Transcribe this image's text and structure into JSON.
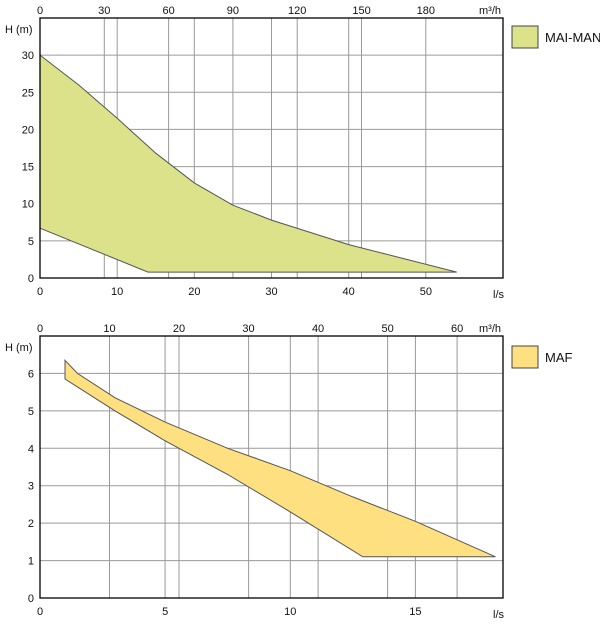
{
  "chart_data": [
    {
      "id": "mai-man",
      "type": "area",
      "ylabel": "H (m)",
      "xlabel_bottom": "l/s",
      "xlabel_top": "m³/h",
      "xlim": [
        0,
        60
      ],
      "ylim": [
        0,
        35
      ],
      "x_ticks": [
        0,
        10,
        20,
        30,
        40,
        50
      ],
      "y_ticks": [
        0,
        5,
        10,
        15,
        20,
        25,
        30
      ],
      "x_top_ticks": [
        0,
        30,
        60,
        90,
        120,
        150,
        180
      ],
      "x_top_factor": 3.6,
      "series": [
        {
          "name": "MAI-MAN",
          "color": "#dbe28a",
          "upper": [
            [
              0,
              30
            ],
            [
              5,
              26
            ],
            [
              10,
              21.5
            ],
            [
              15,
              16.8
            ],
            [
              20,
              12.8
            ],
            [
              25,
              9.8
            ],
            [
              30,
              7.8
            ],
            [
              40,
              4.5
            ],
            [
              54,
              0.8
            ]
          ],
          "lower": [
            [
              0,
              6.7
            ],
            [
              14,
              0.8
            ],
            [
              54,
              0.8
            ]
          ]
        }
      ]
    },
    {
      "id": "maf",
      "type": "area",
      "ylabel": "H (m)",
      "xlabel_bottom": "l/s",
      "xlabel_top": "m³/h",
      "xlim": [
        0,
        18.5
      ],
      "ylim": [
        0,
        7
      ],
      "x_ticks": [
        0,
        5,
        10,
        15
      ],
      "y_ticks": [
        0,
        1,
        2,
        3,
        4,
        5,
        6
      ],
      "x_top_ticks": [
        0,
        10,
        20,
        30,
        40,
        50,
        60
      ],
      "x_top_factor": 3.6,
      "series": [
        {
          "name": "MAF",
          "color": "#ffe080",
          "upper": [
            [
              1,
              6.35
            ],
            [
              1.5,
              6.0
            ],
            [
              3,
              5.35
            ],
            [
              5,
              4.7
            ],
            [
              7.5,
              4.0
            ],
            [
              10,
              3.4
            ],
            [
              12.5,
              2.7
            ],
            [
              15,
              2.05
            ],
            [
              18.2,
              1.1
            ]
          ],
          "lower": [
            [
              1,
              5.85
            ],
            [
              3,
              5.0
            ],
            [
              5,
              4.2
            ],
            [
              7.5,
              3.3
            ],
            [
              10,
              2.3
            ],
            [
              12.9,
              1.1
            ],
            [
              18.2,
              1.1
            ]
          ]
        }
      ]
    }
  ]
}
